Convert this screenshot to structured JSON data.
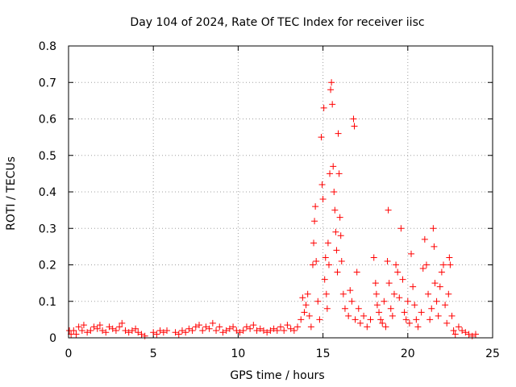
{
  "chart_data": {
    "type": "scatter",
    "title": "Day 104 of 2024, Rate Of TEC Index for receiver iisc",
    "xlabel": "GPS time / hours",
    "ylabel": "ROTI / TECUs",
    "xlim": [
      0,
      25
    ],
    "ylim": [
      0,
      0.8
    ],
    "x_ticks": [
      0,
      5,
      10,
      15,
      20,
      25
    ],
    "y_ticks": [
      0,
      0.1,
      0.2,
      0.3,
      0.4,
      0.5,
      0.6,
      0.7,
      0.8
    ],
    "x_tick_labels": [
      "0",
      "5",
      "10",
      "15",
      "20",
      "25"
    ],
    "y_tick_labels": [
      "0",
      "0.1",
      "0.2",
      "0.3",
      "0.4",
      "0.5",
      "0.6",
      "0.7",
      "0.8"
    ],
    "grid": true,
    "marker": "+",
    "series": [
      {
        "name": "ROTI",
        "color": "#ff0000",
        "points": [
          [
            0.05,
            0.02
          ],
          [
            0.15,
            0.01
          ],
          [
            0.3,
            0.02
          ],
          [
            0.45,
            0.01
          ],
          [
            0.6,
            0.03
          ],
          [
            0.8,
            0.02
          ],
          [
            0.9,
            0.035
          ],
          [
            1.1,
            0.015
          ],
          [
            1.3,
            0.02
          ],
          [
            1.5,
            0.03
          ],
          [
            1.7,
            0.025
          ],
          [
            1.85,
            0.035
          ],
          [
            2.0,
            0.02
          ],
          [
            2.2,
            0.015
          ],
          [
            2.4,
            0.03
          ],
          [
            2.6,
            0.025
          ],
          [
            2.8,
            0.02
          ],
          [
            3.0,
            0.03
          ],
          [
            3.15,
            0.04
          ],
          [
            3.35,
            0.02
          ],
          [
            3.55,
            0.015
          ],
          [
            3.75,
            0.02
          ],
          [
            3.95,
            0.025
          ],
          [
            4.1,
            0.015
          ],
          [
            4.3,
            0.01
          ],
          [
            4.5,
            0.005
          ],
          [
            5.0,
            0.015
          ],
          [
            5.2,
            0.01
          ],
          [
            5.4,
            0.02
          ],
          [
            5.6,
            0.015
          ],
          [
            5.8,
            0.02
          ],
          [
            6.3,
            0.015
          ],
          [
            6.5,
            0.01
          ],
          [
            6.7,
            0.02
          ],
          [
            6.9,
            0.015
          ],
          [
            7.1,
            0.025
          ],
          [
            7.3,
            0.02
          ],
          [
            7.5,
            0.03
          ],
          [
            7.7,
            0.035
          ],
          [
            7.9,
            0.02
          ],
          [
            8.1,
            0.03
          ],
          [
            8.3,
            0.025
          ],
          [
            8.5,
            0.04
          ],
          [
            8.7,
            0.02
          ],
          [
            8.9,
            0.03
          ],
          [
            9.1,
            0.015
          ],
          [
            9.3,
            0.02
          ],
          [
            9.5,
            0.025
          ],
          [
            9.7,
            0.03
          ],
          [
            9.9,
            0.02
          ],
          [
            10.1,
            0.015
          ],
          [
            10.3,
            0.02
          ],
          [
            10.5,
            0.03
          ],
          [
            10.7,
            0.025
          ],
          [
            10.9,
            0.035
          ],
          [
            11.1,
            0.02
          ],
          [
            11.3,
            0.025
          ],
          [
            11.5,
            0.02
          ],
          [
            11.7,
            0.015
          ],
          [
            11.9,
            0.02
          ],
          [
            12.1,
            0.025
          ],
          [
            12.3,
            0.02
          ],
          [
            12.5,
            0.03
          ],
          [
            12.7,
            0.02
          ],
          [
            12.9,
            0.035
          ],
          [
            13.1,
            0.025
          ],
          [
            13.3,
            0.02
          ],
          [
            13.5,
            0.03
          ],
          [
            13.7,
            0.05
          ],
          [
            13.8,
            0.11
          ],
          [
            13.9,
            0.07
          ],
          [
            14.0,
            0.09
          ],
          [
            14.1,
            0.12
          ],
          [
            14.2,
            0.06
          ],
          [
            14.3,
            0.03
          ],
          [
            14.4,
            0.2
          ],
          [
            14.45,
            0.26
          ],
          [
            14.5,
            0.32
          ],
          [
            14.55,
            0.36
          ],
          [
            14.6,
            0.21
          ],
          [
            14.7,
            0.1
          ],
          [
            14.8,
            0.05
          ],
          [
            14.9,
            0.55
          ],
          [
            14.95,
            0.42
          ],
          [
            15.0,
            0.38
          ],
          [
            15.05,
            0.63
          ],
          [
            15.1,
            0.16
          ],
          [
            15.15,
            0.22
          ],
          [
            15.2,
            0.12
          ],
          [
            15.25,
            0.08
          ],
          [
            15.3,
            0.26
          ],
          [
            15.35,
            0.2
          ],
          [
            15.4,
            0.45
          ],
          [
            15.45,
            0.68
          ],
          [
            15.5,
            0.7
          ],
          [
            15.55,
            0.64
          ],
          [
            15.6,
            0.47
          ],
          [
            15.65,
            0.4
          ],
          [
            15.7,
            0.35
          ],
          [
            15.75,
            0.29
          ],
          [
            15.8,
            0.24
          ],
          [
            15.85,
            0.18
          ],
          [
            15.9,
            0.56
          ],
          [
            15.95,
            0.45
          ],
          [
            16.0,
            0.33
          ],
          [
            16.05,
            0.28
          ],
          [
            16.1,
            0.21
          ],
          [
            16.2,
            0.12
          ],
          [
            16.3,
            0.08
          ],
          [
            16.5,
            0.06
          ],
          [
            16.6,
            0.13
          ],
          [
            16.7,
            0.1
          ],
          [
            16.8,
            0.6
          ],
          [
            16.85,
            0.58
          ],
          [
            16.9,
            0.05
          ],
          [
            17.0,
            0.18
          ],
          [
            17.1,
            0.08
          ],
          [
            17.2,
            0.04
          ],
          [
            17.4,
            0.06
          ],
          [
            17.6,
            0.03
          ],
          [
            17.8,
            0.05
          ],
          [
            18.0,
            0.22
          ],
          [
            18.1,
            0.15
          ],
          [
            18.15,
            0.12
          ],
          [
            18.2,
            0.09
          ],
          [
            18.3,
            0.07
          ],
          [
            18.4,
            0.05
          ],
          [
            18.5,
            0.04
          ],
          [
            18.6,
            0.1
          ],
          [
            18.7,
            0.03
          ],
          [
            18.8,
            0.21
          ],
          [
            18.85,
            0.35
          ],
          [
            18.9,
            0.15
          ],
          [
            19.0,
            0.08
          ],
          [
            19.1,
            0.06
          ],
          [
            19.2,
            0.12
          ],
          [
            19.3,
            0.2
          ],
          [
            19.4,
            0.18
          ],
          [
            19.5,
            0.11
          ],
          [
            19.6,
            0.3
          ],
          [
            19.7,
            0.16
          ],
          [
            19.8,
            0.07
          ],
          [
            19.9,
            0.05
          ],
          [
            20.0,
            0.1
          ],
          [
            20.1,
            0.04
          ],
          [
            20.2,
            0.23
          ],
          [
            20.3,
            0.14
          ],
          [
            20.4,
            0.09
          ],
          [
            20.5,
            0.05
          ],
          [
            20.6,
            0.03
          ],
          [
            20.8,
            0.07
          ],
          [
            20.9,
            0.19
          ],
          [
            21.0,
            0.27
          ],
          [
            21.1,
            0.2
          ],
          [
            21.2,
            0.12
          ],
          [
            21.3,
            0.05
          ],
          [
            21.4,
            0.08
          ],
          [
            21.5,
            0.3
          ],
          [
            21.55,
            0.25
          ],
          [
            21.6,
            0.15
          ],
          [
            21.7,
            0.1
          ],
          [
            21.8,
            0.06
          ],
          [
            21.9,
            0.14
          ],
          [
            22.0,
            0.18
          ],
          [
            22.1,
            0.2
          ],
          [
            22.2,
            0.09
          ],
          [
            22.3,
            0.04
          ],
          [
            22.4,
            0.12
          ],
          [
            22.45,
            0.22
          ],
          [
            22.5,
            0.2
          ],
          [
            22.6,
            0.06
          ],
          [
            22.7,
            0.02
          ],
          [
            22.8,
            0.01
          ],
          [
            23.0,
            0.03
          ],
          [
            23.2,
            0.02
          ],
          [
            23.4,
            0.015
          ],
          [
            23.6,
            0.01
          ],
          [
            23.8,
            0.005
          ],
          [
            24.0,
            0.01
          ]
        ]
      }
    ]
  }
}
